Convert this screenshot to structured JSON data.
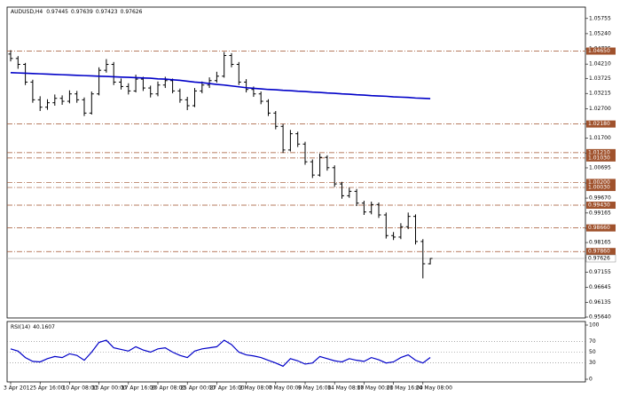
{
  "chart_data": {
    "type": "ohlc",
    "title": "AUDUSD,H4",
    "categories": [
      "3 Apr 2012",
      null,
      null,
      null,
      "5 Apr 16:00",
      null,
      null,
      null,
      "10 Apr 08:00",
      null,
      null,
      null,
      "13 Apr 00:00",
      null,
      null,
      null,
      "17 Apr 16:00",
      null,
      null,
      null,
      "20 Apr 08:00",
      null,
      null,
      null,
      "25 Apr 00:00",
      null,
      null,
      null,
      "27 Apr 16:00",
      null,
      null,
      null,
      "2 May 08:00",
      null,
      null,
      null,
      "7 May 00:00",
      null,
      null,
      null,
      "9 May 16:00",
      null,
      null,
      null,
      "14 May 08:00",
      null,
      null,
      null,
      "17 May 00:00",
      null,
      null,
      null,
      "21 May 16:00",
      null,
      null,
      null,
      "24 May 08:00",
      null
    ],
    "open": [
      1.0455,
      1.044,
      1.042,
      1.036,
      1.03,
      1.0275,
      1.029,
      1.0305,
      1.0295,
      1.032,
      1.03,
      1.0255,
      1.032,
      1.04,
      1.042,
      1.036,
      1.0345,
      1.033,
      1.037,
      1.034,
      1.032,
      1.035,
      1.0365,
      1.033,
      1.03,
      1.028,
      1.033,
      1.035,
      1.0365,
      1.038,
      1.045,
      1.042,
      1.036,
      1.0335,
      1.032,
      1.0295,
      1.0255,
      1.021,
      1.013,
      1.0185,
      1.015,
      1.009,
      1.0045,
      1.0105,
      1.007,
      1.0015,
      0.9975,
      0.999,
      0.995,
      0.992,
      0.9945,
      0.991,
      0.984,
      0.9835,
      0.987,
      0.9905,
      0.982,
      0.97445
    ],
    "high": [
      1.0468,
      1.0448,
      1.0425,
      1.0368,
      1.0312,
      1.0302,
      1.0318,
      1.0315,
      1.0332,
      1.033,
      1.0308,
      1.0328,
      1.041,
      1.0438,
      1.0428,
      1.0372,
      1.0356,
      1.0385,
      1.0378,
      1.0348,
      1.0362,
      1.0378,
      1.0372,
      1.0338,
      1.031,
      1.034,
      1.0362,
      1.0376,
      1.0395,
      1.0462,
      1.0458,
      1.0428,
      1.037,
      1.0345,
      1.0328,
      1.0302,
      1.0262,
      1.0218,
      1.0198,
      1.0192,
      1.0158,
      1.0098,
      1.0118,
      1.0112,
      1.0078,
      1.0022,
      1.0002,
      0.9998,
      0.9958,
      0.9955,
      0.9952,
      0.9918,
      0.9852,
      0.9882,
      0.9918,
      0.9912,
      0.9828,
      0.97639
    ],
    "low": [
      1.043,
      1.0405,
      1.035,
      1.029,
      1.0262,
      1.0266,
      1.028,
      1.0283,
      1.0288,
      1.029,
      1.0245,
      1.025,
      1.0315,
      1.0392,
      1.035,
      1.0335,
      1.0318,
      1.0325,
      1.033,
      1.0308,
      1.0312,
      1.034,
      1.0322,
      1.029,
      1.0265,
      1.0275,
      1.0322,
      1.034,
      1.0358,
      1.0375,
      1.041,
      1.035,
      1.0325,
      1.031,
      1.0285,
      1.0245,
      1.02,
      1.012,
      1.0125,
      1.014,
      1.008,
      1.0035,
      1.004,
      1.006,
      1.0005,
      0.9965,
      0.9968,
      0.994,
      0.991,
      0.9912,
      0.99,
      0.983,
      0.9825,
      0.9828,
      0.9862,
      0.981,
      0.9695,
      0.97423
    ],
    "close": [
      1.044,
      1.042,
      1.036,
      1.03,
      1.0275,
      1.029,
      1.0305,
      1.0295,
      1.032,
      1.03,
      1.0255,
      1.032,
      1.04,
      1.042,
      1.036,
      1.0345,
      1.033,
      1.037,
      1.034,
      1.032,
      1.035,
      1.0365,
      1.033,
      1.03,
      1.028,
      1.033,
      1.035,
      1.0365,
      1.038,
      1.045,
      1.042,
      1.036,
      1.0335,
      1.032,
      1.0295,
      1.0255,
      1.021,
      1.013,
      1.0185,
      1.015,
      1.009,
      1.0045,
      1.0105,
      1.007,
      1.0015,
      0.9975,
      0.999,
      0.995,
      0.992,
      0.9945,
      0.991,
      0.984,
      0.9835,
      0.987,
      0.9905,
      0.982,
      0.97445,
      0.97626
    ],
    "ma": [
      1.0392,
      1.0391,
      1.039,
      1.0389,
      1.0388,
      1.0387,
      1.0386,
      1.0385,
      1.0384,
      1.0383,
      1.0382,
      1.0381,
      1.038,
      1.0379,
      1.0378,
      1.0377,
      1.0376,
      1.0375,
      1.0374,
      1.0373,
      1.0371,
      1.037,
      1.0368,
      1.0366,
      1.0363,
      1.036,
      1.0358,
      1.0355,
      1.0352,
      1.035,
      1.0347,
      1.0344,
      1.0341,
      1.0339,
      1.0337,
      1.0335,
      1.0334,
      1.0332,
      1.0331,
      1.0329,
      1.0328,
      1.0326,
      1.0325,
      1.0323,
      1.0322,
      1.032,
      1.0319,
      1.0317,
      1.0316,
      1.0314,
      1.0313,
      1.0312,
      1.031,
      1.0309,
      1.0308,
      1.0306,
      1.0305,
      1.0304
    ],
    "ylim": [
      0.9561,
      1.0614
    ],
    "yticks": [
      1.05755,
      {
        "value": 1.0524,
        "label": "1.05240"
      },
      1.04725,
      {
        "value": 1.0421,
        "label": "1.04210"
      },
      1.03725,
      1.03215,
      {
        "value": 1.027,
        "label": "1.02700"
      },
      {
        "value": 1.0219,
        "label": "1.02190"
      },
      {
        "value": 1.017,
        "label": "1.01700"
      },
      1.01185,
      1.00695,
      {
        "value": 1.0018,
        "label": "1.00180"
      },
      {
        "value": 0.9967,
        "label": "0.99670"
      },
      0.99165,
      {
        "value": 0.9865,
        "label": "0.98650"
      },
      0.98165,
      {
        "value": 0.9765,
        "label": "0.97650"
      },
      0.97155,
      0.96645,
      0.96135,
      {
        "value": 0.9564,
        "label": "0.95640"
      }
    ],
    "levels": [
      {
        "value": 1.0465,
        "label": "1.04650"
      },
      {
        "value": 1.0218,
        "label": "1.02180"
      },
      {
        "value": 1.0121,
        "label": "1.01210"
      },
      {
        "value": 1.0103,
        "label": "1.01030"
      },
      {
        "value": 1.002,
        "label": "1.00200"
      },
      {
        "value": 1.0003,
        "label": "1.00030"
      },
      {
        "value": 0.9943,
        "label": "0.99430"
      },
      {
        "value": 0.9866,
        "label": "0.98660"
      },
      {
        "value": 0.9786,
        "label": "0.97860"
      }
    ],
    "bar_color": "#000000",
    "ma_color": "#0000c8",
    "level_color": "#a0522d",
    "indicator": {
      "type": "line",
      "title": "RSI(14)",
      "values": [
        56,
        52,
        40,
        33,
        32,
        38,
        42,
        40,
        47,
        44,
        35,
        50,
        68,
        72,
        58,
        55,
        52,
        60,
        54,
        50,
        56,
        58,
        50,
        44,
        40,
        52,
        56,
        58,
        60,
        72,
        64,
        50,
        45,
        43,
        40,
        35,
        30,
        24,
        38,
        34,
        28,
        30,
        42,
        38,
        34,
        32,
        38,
        35,
        33,
        40,
        36,
        30,
        32,
        40,
        45,
        35,
        30,
        40.1607
      ],
      "ylim": [
        0,
        100
      ],
      "yticks": [
        100,
        70,
        50,
        30,
        0
      ],
      "color": "#0000c8"
    }
  }
}
